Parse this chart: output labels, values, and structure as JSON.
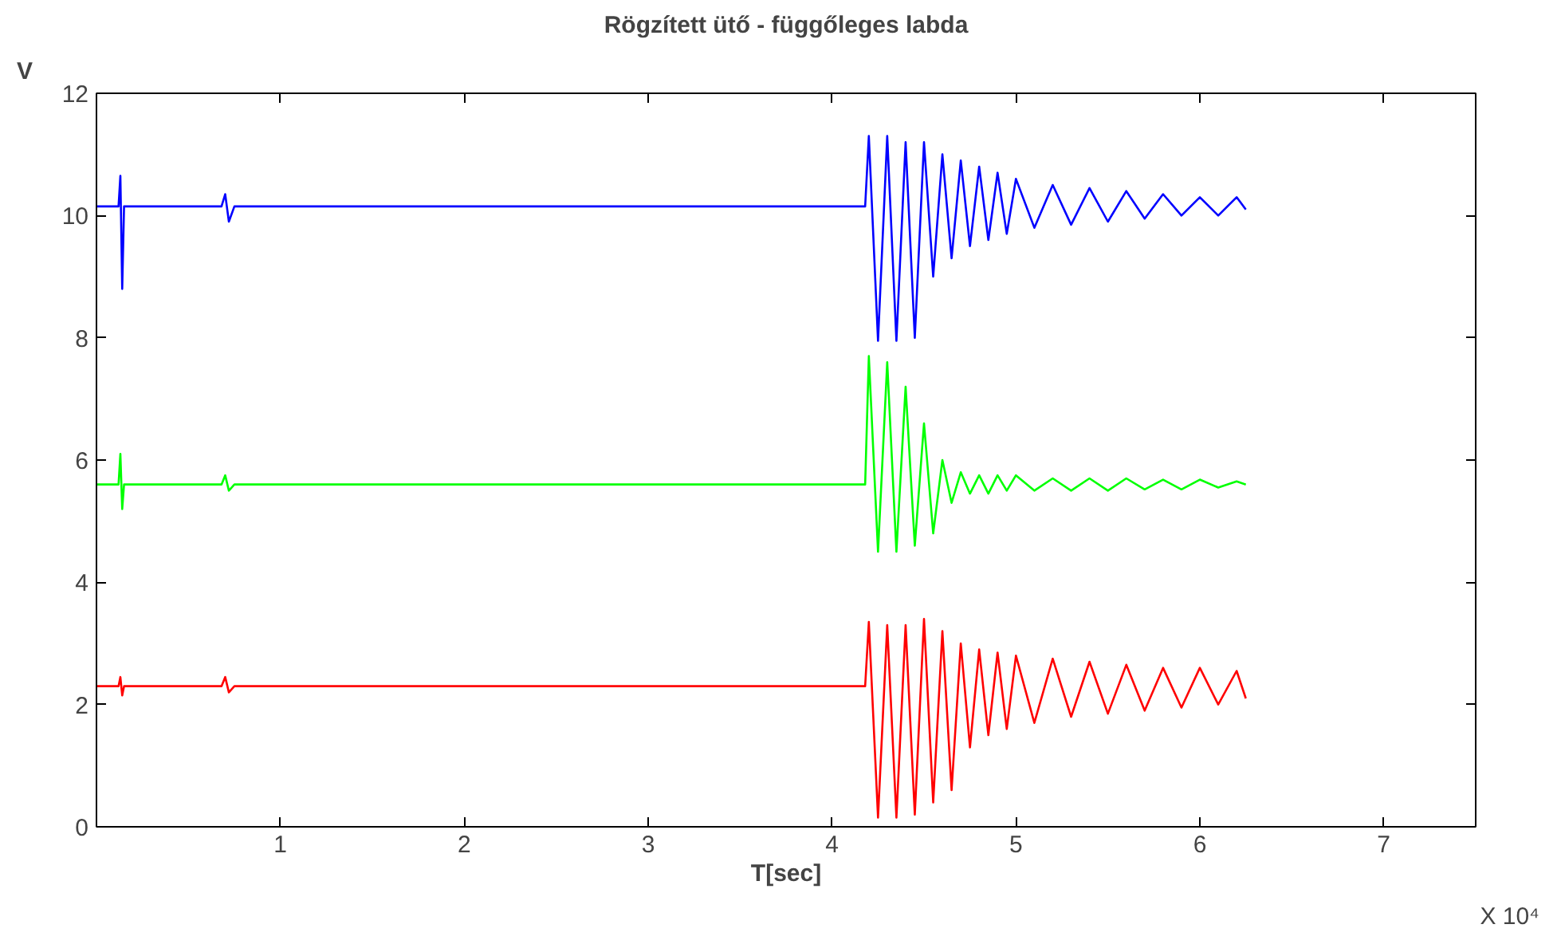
{
  "chart_data": {
    "type": "line",
    "title": "Rögzített ütő - függőleges labda",
    "xlabel": "T[sec]",
    "ylabel": "V",
    "annotations": [
      "X 10⁴"
    ],
    "xlim": [
      0,
      7.5
    ],
    "xticks": [
      {
        "value": 0,
        "label": null
      },
      1,
      2,
      3,
      4,
      5,
      6,
      7
    ],
    "ylim": [
      0,
      12
    ],
    "yticks": [
      0,
      2,
      4,
      6,
      8,
      10,
      12
    ],
    "grid": false,
    "marker": "none",
    "line_style": "solid",
    "series": [
      {
        "color": "#0000ff",
        "x": [
          0,
          0.12,
          0.13,
          0.14,
          0.15,
          0.5,
          0.68,
          0.7,
          0.72,
          0.75,
          1.5,
          2.5,
          3.5,
          4.18,
          4.2,
          4.25,
          4.3,
          4.35,
          4.4,
          4.45,
          4.5,
          4.55,
          4.6,
          4.65,
          4.7,
          4.75,
          4.8,
          4.85,
          4.9,
          4.95,
          5.0,
          5.1,
          5.2,
          5.3,
          5.4,
          5.5,
          5.6,
          5.7,
          5.8,
          5.9,
          6.0,
          6.1,
          6.2,
          6.25
        ],
        "values": [
          10.15,
          10.15,
          10.65,
          8.8,
          10.15,
          10.15,
          10.15,
          10.35,
          9.9,
          10.15,
          10.15,
          10.15,
          10.15,
          10.15,
          11.3,
          7.95,
          11.3,
          7.95,
          11.2,
          8.0,
          11.2,
          9.0,
          11.0,
          9.3,
          10.9,
          9.5,
          10.8,
          9.6,
          10.7,
          9.7,
          10.6,
          9.8,
          10.5,
          9.85,
          10.45,
          9.9,
          10.4,
          9.95,
          10.35,
          10.0,
          10.3,
          10.0,
          10.3,
          10.1
        ]
      },
      {
        "color": "#00ff00",
        "x": [
          0,
          0.12,
          0.13,
          0.14,
          0.15,
          0.5,
          0.68,
          0.7,
          0.72,
          0.75,
          1.5,
          2.5,
          3.5,
          4.18,
          4.2,
          4.25,
          4.3,
          4.35,
          4.4,
          4.45,
          4.5,
          4.55,
          4.6,
          4.65,
          4.7,
          4.75,
          4.8,
          4.85,
          4.9,
          4.95,
          5.0,
          5.1,
          5.2,
          5.3,
          5.4,
          5.5,
          5.6,
          5.7,
          5.8,
          5.9,
          6.0,
          6.1,
          6.2,
          6.25
        ],
        "values": [
          5.6,
          5.6,
          6.1,
          5.2,
          5.6,
          5.6,
          5.6,
          5.75,
          5.5,
          5.6,
          5.6,
          5.6,
          5.6,
          5.6,
          7.7,
          4.5,
          7.6,
          4.5,
          7.2,
          4.6,
          6.6,
          4.8,
          6.0,
          5.3,
          5.8,
          5.45,
          5.75,
          5.45,
          5.75,
          5.5,
          5.75,
          5.5,
          5.7,
          5.5,
          5.7,
          5.5,
          5.7,
          5.52,
          5.68,
          5.52,
          5.68,
          5.55,
          5.65,
          5.6
        ]
      },
      {
        "color": "#ff0000",
        "x": [
          0,
          0.12,
          0.13,
          0.14,
          0.15,
          0.5,
          0.68,
          0.7,
          0.72,
          0.75,
          1.5,
          2.5,
          3.5,
          4.18,
          4.2,
          4.25,
          4.3,
          4.35,
          4.4,
          4.45,
          4.5,
          4.55,
          4.6,
          4.65,
          4.7,
          4.75,
          4.8,
          4.85,
          4.9,
          4.95,
          5.0,
          5.1,
          5.2,
          5.3,
          5.4,
          5.5,
          5.6,
          5.7,
          5.8,
          5.9,
          6.0,
          6.1,
          6.2,
          6.25
        ],
        "values": [
          2.3,
          2.3,
          2.45,
          2.15,
          2.3,
          2.3,
          2.3,
          2.45,
          2.2,
          2.3,
          2.3,
          2.3,
          2.3,
          2.3,
          3.35,
          0.15,
          3.3,
          0.15,
          3.3,
          0.2,
          3.4,
          0.4,
          3.2,
          0.6,
          3.0,
          1.3,
          2.9,
          1.5,
          2.85,
          1.6,
          2.8,
          1.7,
          2.75,
          1.8,
          2.7,
          1.85,
          2.65,
          1.9,
          2.6,
          1.95,
          2.6,
          2.0,
          2.55,
          2.1
        ]
      }
    ]
  }
}
